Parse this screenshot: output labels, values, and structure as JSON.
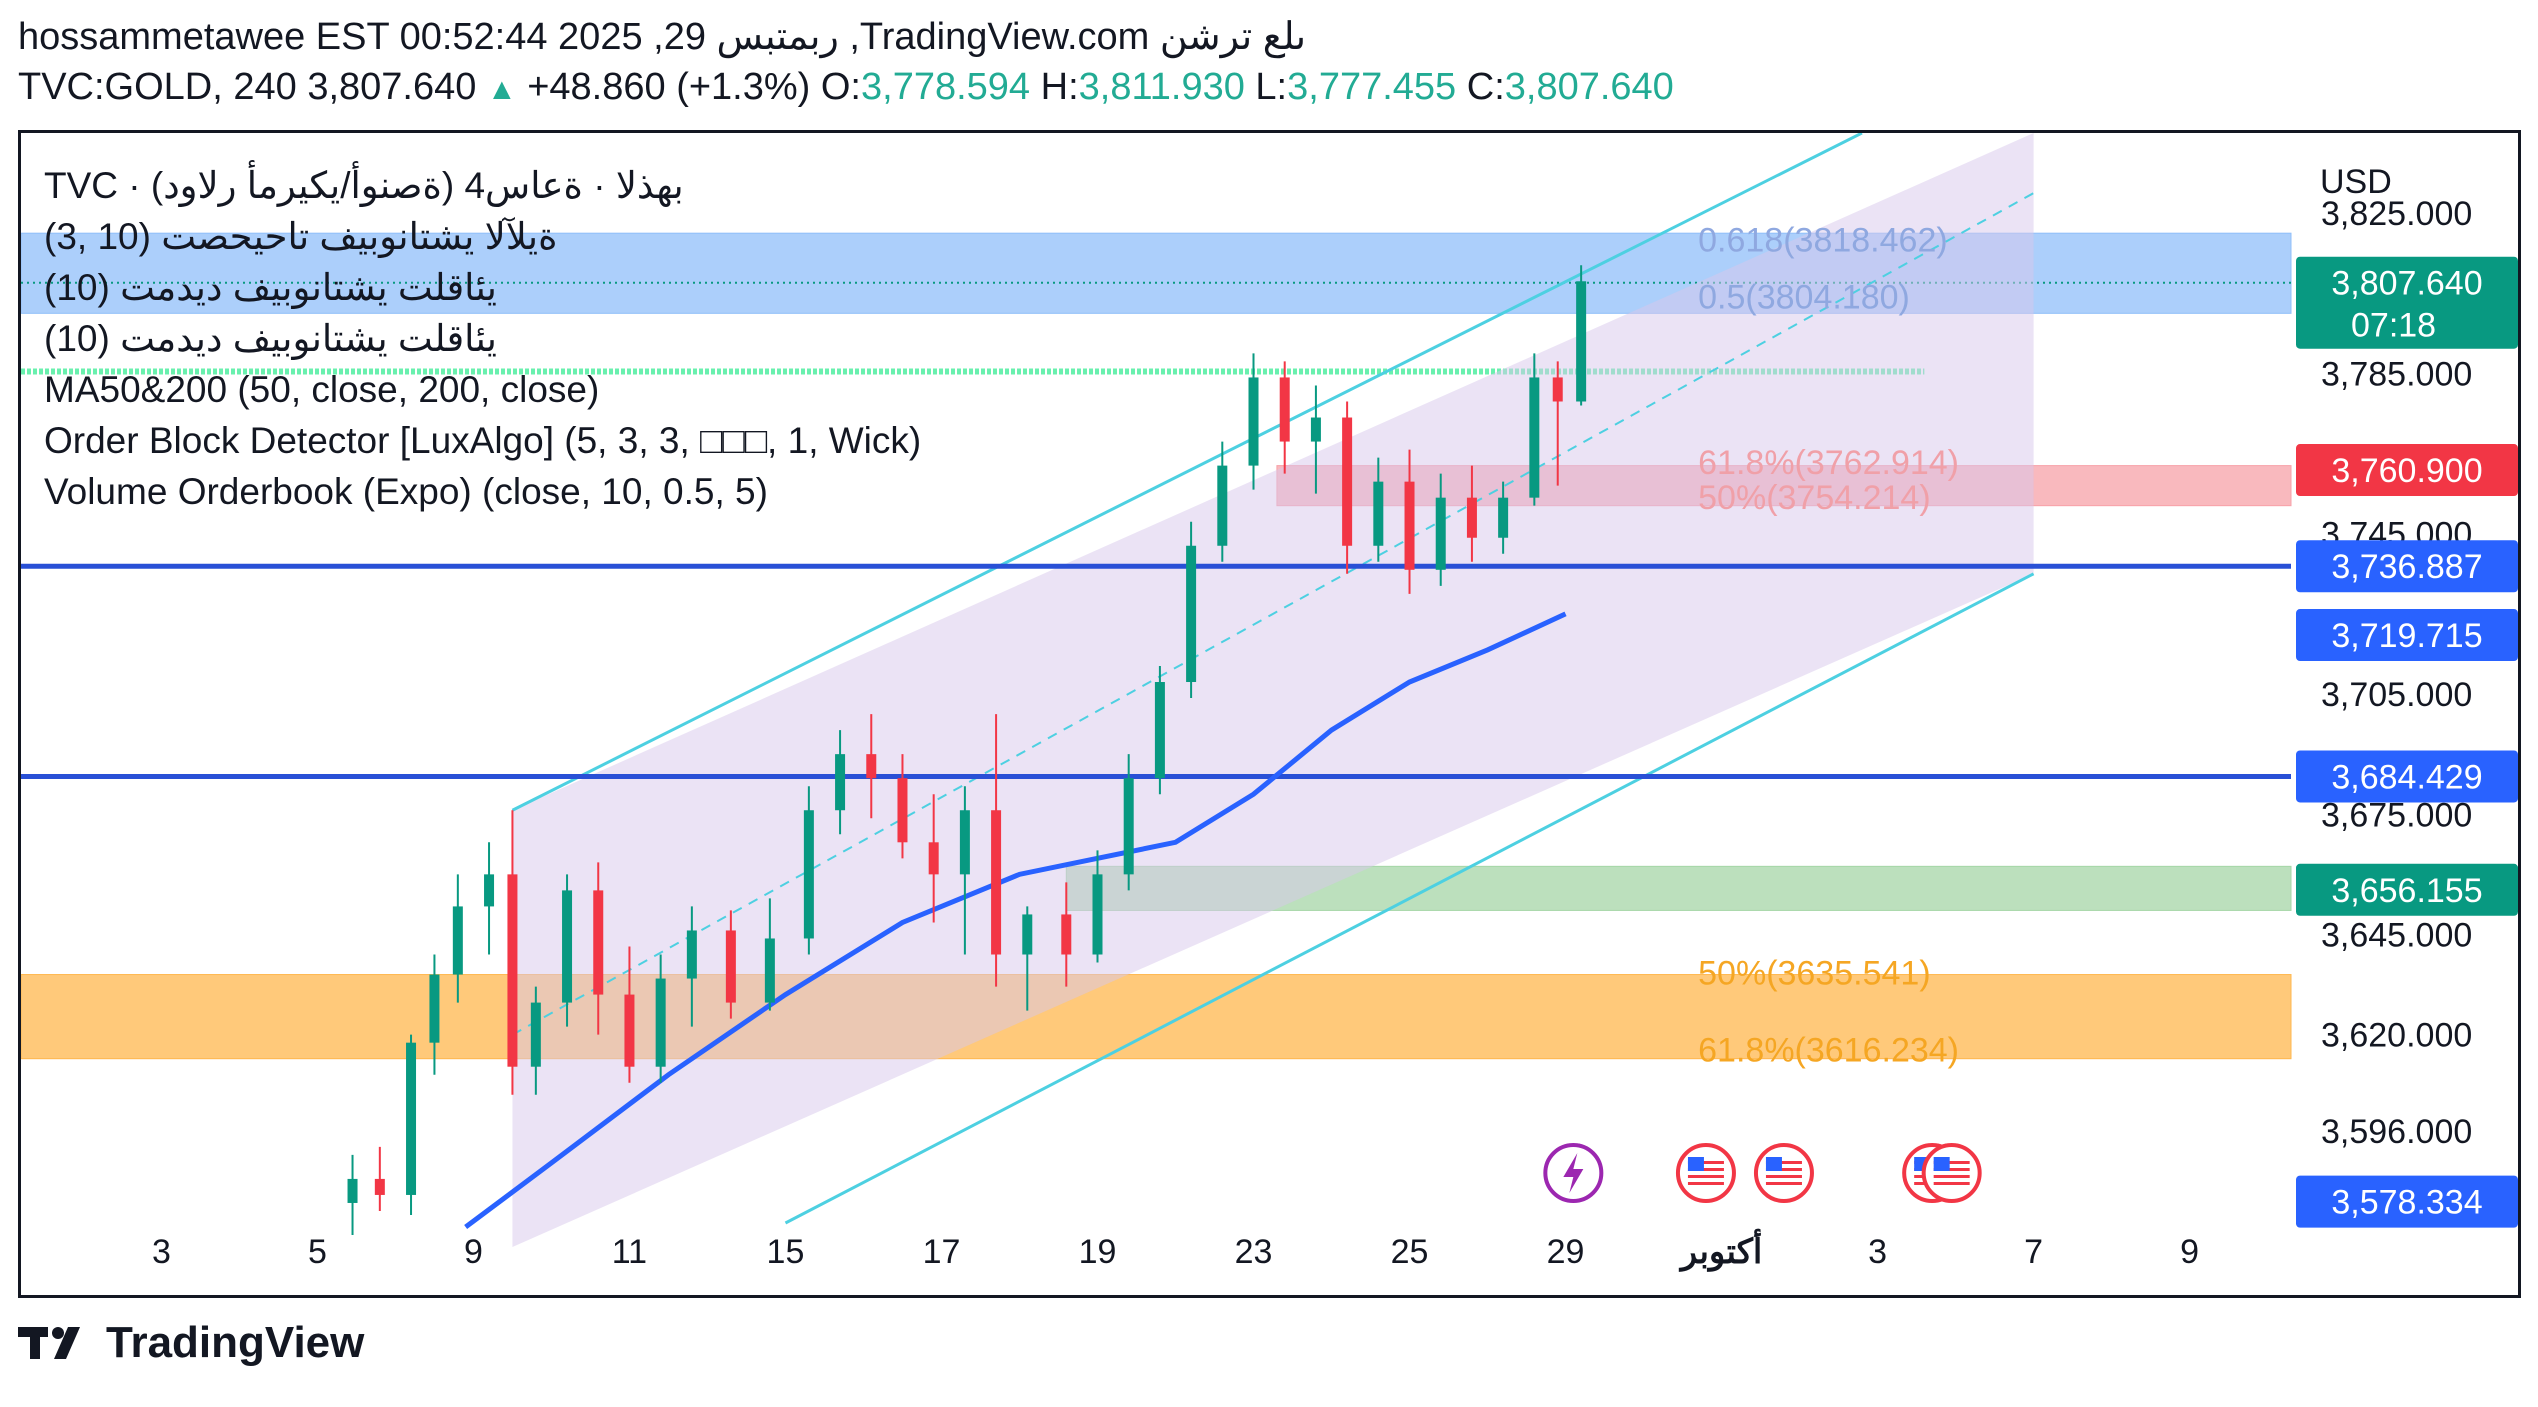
{
  "header": {
    "line1": "hossammetawee EST 00:52:44 2025 ,29 ربمتبس ,TradingView.com ىلع ترشن",
    "symbol": "TVC:GOLD, 240",
    "last": "3,807.640",
    "change": "+48.860 (+1.3%)",
    "o_label": "O:",
    "o_val": "3,778.594",
    "h_label": "H:",
    "h_val": "3,811.930",
    "l_label": "L:",
    "l_val": "3,777.455",
    "c_label": "C:",
    "c_val": "3,807.640"
  },
  "legend": [
    "TVC · (ةصنوأ/يكيرمأ رلاود) بهذلا · ةعاس4",
    "(3, 10) ةيلآلا يشتانوبيف تاحيحصت",
    "(10) يئاقلت يشتانوبيف ديدمت",
    "(10) يئاقلت يشتانوبيف ديدمت",
    "MA50&200 (50, close, 200, close)",
    "Order Block Detector [LuxAlgo] (5, 3, 3, □□□, 1, Wick)",
    "Volume Orderbook (Expo) (close, 10, 0.5, 5)"
  ],
  "currency": "USD",
  "brand": "TradingView",
  "chart_data": {
    "type": "candlestick",
    "symbol": "TVC:GOLD",
    "interval": "240",
    "y_ticks": [
      3825,
      3785,
      3745,
      3705,
      3675,
      3645,
      3620,
      3596
    ],
    "y_tick_labels": [
      "3,825.000",
      "3,785.000",
      "3,745.000",
      "3,705.000",
      "3,675.000",
      "3,645.000",
      "3,620.000",
      "3,596.000"
    ],
    "ylim": [
      3573,
      3845
    ],
    "x_tick_labels": [
      "3",
      "5",
      "9",
      "11",
      "15",
      "17",
      "19",
      "23",
      "25",
      "29",
      "أكتوبر",
      "3",
      "7",
      "9"
    ],
    "x_tick_days": [
      -1,
      1,
      3,
      5,
      7,
      9,
      11,
      13,
      15,
      17,
      19,
      21,
      23,
      25
    ],
    "xlim": [
      -2.8,
      26.3
    ],
    "candles_note": "approx. daily-step read-off; x in trading-day index aligned to tick labels",
    "candles": [
      {
        "x": 1.45,
        "o": 3578,
        "h": 3590,
        "l": 3570,
        "c": 3584
      },
      {
        "x": 1.8,
        "o": 3584,
        "h": 3592,
        "l": 3576,
        "c": 3580
      },
      {
        "x": 2.2,
        "o": 3580,
        "h": 3620,
        "l": 3575,
        "c": 3618
      },
      {
        "x": 2.5,
        "o": 3618,
        "h": 3640,
        "l": 3610,
        "c": 3635
      },
      {
        "x": 2.8,
        "o": 3635,
        "h": 3660,
        "l": 3628,
        "c": 3652
      },
      {
        "x": 3.2,
        "o": 3652,
        "h": 3668,
        "l": 3640,
        "c": 3660
      },
      {
        "x": 3.5,
        "o": 3660,
        "h": 3676,
        "l": 3605,
        "c": 3612
      },
      {
        "x": 3.8,
        "o": 3612,
        "h": 3632,
        "l": 3605,
        "c": 3628
      },
      {
        "x": 4.2,
        "o": 3628,
        "h": 3660,
        "l": 3622,
        "c": 3656
      },
      {
        "x": 4.6,
        "o": 3656,
        "h": 3663,
        "l": 3620,
        "c": 3630
      },
      {
        "x": 5.0,
        "o": 3630,
        "h": 3642,
        "l": 3608,
        "c": 3612
      },
      {
        "x": 5.4,
        "o": 3612,
        "h": 3640,
        "l": 3608,
        "c": 3634
      },
      {
        "x": 5.8,
        "o": 3634,
        "h": 3652,
        "l": 3622,
        "c": 3646
      },
      {
        "x": 6.3,
        "o": 3646,
        "h": 3651,
        "l": 3624,
        "c": 3628
      },
      {
        "x": 6.8,
        "o": 3628,
        "h": 3654,
        "l": 3626,
        "c": 3644
      },
      {
        "x": 7.3,
        "o": 3644,
        "h": 3682,
        "l": 3640,
        "c": 3676
      },
      {
        "x": 7.7,
        "o": 3676,
        "h": 3696,
        "l": 3670,
        "c": 3690
      },
      {
        "x": 8.1,
        "o": 3690,
        "h": 3700,
        "l": 3674,
        "c": 3684
      },
      {
        "x": 8.5,
        "o": 3684,
        "h": 3690,
        "l": 3664,
        "c": 3668
      },
      {
        "x": 8.9,
        "o": 3668,
        "h": 3680,
        "l": 3648,
        "c": 3660
      },
      {
        "x": 9.3,
        "o": 3660,
        "h": 3682,
        "l": 3640,
        "c": 3676
      },
      {
        "x": 9.7,
        "o": 3676,
        "h": 3700,
        "l": 3632,
        "c": 3640
      },
      {
        "x": 10.1,
        "o": 3640,
        "h": 3652,
        "l": 3626,
        "c": 3650
      },
      {
        "x": 10.6,
        "o": 3650,
        "h": 3658,
        "l": 3632,
        "c": 3640
      },
      {
        "x": 11.0,
        "o": 3640,
        "h": 3666,
        "l": 3638,
        "c": 3660
      },
      {
        "x": 11.4,
        "o": 3660,
        "h": 3690,
        "l": 3656,
        "c": 3684
      },
      {
        "x": 11.8,
        "o": 3684,
        "h": 3712,
        "l": 3680,
        "c": 3708
      },
      {
        "x": 12.2,
        "o": 3708,
        "h": 3748,
        "l": 3704,
        "c": 3742
      },
      {
        "x": 12.6,
        "o": 3742,
        "h": 3768,
        "l": 3738,
        "c": 3762
      },
      {
        "x": 13.0,
        "o": 3762,
        "h": 3790,
        "l": 3756,
        "c": 3784
      },
      {
        "x": 13.4,
        "o": 3784,
        "h": 3788,
        "l": 3760,
        "c": 3768
      },
      {
        "x": 13.8,
        "o": 3768,
        "h": 3782,
        "l": 3755,
        "c": 3774
      },
      {
        "x": 14.2,
        "o": 3774,
        "h": 3778,
        "l": 3735,
        "c": 3742
      },
      {
        "x": 14.6,
        "o": 3742,
        "h": 3764,
        "l": 3738,
        "c": 3758
      },
      {
        "x": 15.0,
        "o": 3758,
        "h": 3766,
        "l": 3730,
        "c": 3736
      },
      {
        "x": 15.4,
        "o": 3736,
        "h": 3760,
        "l": 3732,
        "c": 3754
      },
      {
        "x": 15.8,
        "o": 3754,
        "h": 3762,
        "l": 3738,
        "c": 3744
      },
      {
        "x": 16.2,
        "o": 3744,
        "h": 3758,
        "l": 3740,
        "c": 3754
      },
      {
        "x": 16.6,
        "o": 3754,
        "h": 3790,
        "l": 3752,
        "c": 3784
      },
      {
        "x": 16.9,
        "o": 3784,
        "h": 3788,
        "l": 3757,
        "c": 3778
      },
      {
        "x": 17.2,
        "o": 3778,
        "h": 3812,
        "l": 3777,
        "c": 3808
      }
    ],
    "series": [
      {
        "name": "MA50&200",
        "color": "#2962ff",
        "x": [
          2.9,
          4.0,
          5.5,
          7.0,
          8.5,
          10.0,
          11.0,
          12.0,
          13.0,
          14.0,
          15.0,
          16.0,
          17.0
        ],
        "values": [
          3572,
          3588,
          3610,
          3630,
          3648,
          3660,
          3664,
          3668,
          3680,
          3696,
          3708,
          3716,
          3725
        ]
      }
    ],
    "price_labels": [
      {
        "text": "3,807.640",
        "sub": "07:18",
        "value": 3807.64,
        "color": "#089981"
      },
      {
        "text": "3,760.900",
        "value": 3760.9,
        "color": "#f23645"
      },
      {
        "text": "3,736.887",
        "value": 3736.887,
        "color": "#2962ff"
      },
      {
        "text": "3,719.715",
        "value": 3719.715,
        "color": "#2962ff"
      },
      {
        "text": "3,684.429",
        "value": 3684.429,
        "color": "#2962ff"
      },
      {
        "text": "3,656.155",
        "value": 3656.155,
        "color": "#089981"
      },
      {
        "text": "3,578.334",
        "value": 3578.334,
        "color": "#2962ff"
      }
    ],
    "horizontal_lines": [
      3736.887,
      3684.429
    ],
    "zones": [
      {
        "name": "supply",
        "from": 3800,
        "to": 3820,
        "color": "#90bff9"
      },
      {
        "name": "order-block-red",
        "from": 3752,
        "to": 3762,
        "color": "#f7a1a8"
      },
      {
        "name": "order-block-green",
        "from": 3651,
        "to": 3662,
        "color": "#a5d6a7"
      },
      {
        "name": "demand-orange",
        "from": 3614,
        "to": 3635,
        "color": "#ffb74d"
      }
    ],
    "fib_labels": [
      {
        "text": "0.618(3818.462)",
        "value": 3818.462,
        "color": "#8fa8e0"
      },
      {
        "text": "0.5(3804.180)",
        "value": 3804.18,
        "color": "#8fa8e0"
      },
      {
        "text": "61.8%(3762.914)",
        "value": 3762.914,
        "color": "#f0a0a8"
      },
      {
        "text": "50%(3754.214)",
        "value": 3754.214,
        "color": "#f0a0a8"
      },
      {
        "text": "50%(3635.541)",
        "value": 3635.541,
        "color": "#f5a623"
      },
      {
        "text": "61.8%(3616.234)",
        "value": 3616.234,
        "color": "#f5a623"
      }
    ]
  }
}
